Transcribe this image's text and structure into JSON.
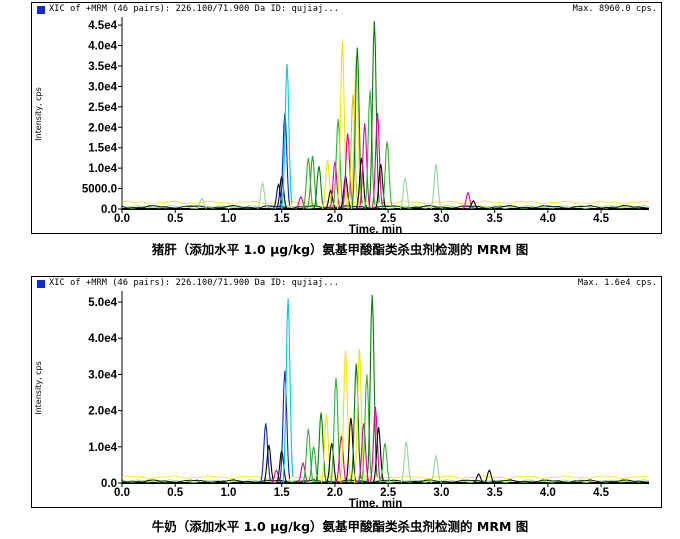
{
  "colors": {
    "header_square": "#0b2ad8",
    "series_palette": [
      "#00c8e8",
      "#0a2aa8",
      "#ffe000",
      "#2ab82a",
      "#0a7a0a",
      "#e000a0",
      "#000000",
      "#9ad49a",
      "#7878e8",
      "#c8c800",
      "#30a030",
      "#000080"
    ]
  },
  "chart_data": [
    {
      "type": "line",
      "header": "XIC of +MRM (46 pairs): 226.100/71.900 Da ID: qujiaj...",
      "max_label": "Max. 8960.0 cps.",
      "ylabel": "Intensity, cps",
      "xlabel": "Time, min",
      "xlim": [
        0.0,
        4.95
      ],
      "ylim": [
        0,
        46500
      ],
      "x_ticks": [
        "0.0",
        "0.5",
        "1.0",
        "1.5",
        "2.0",
        "2.5",
        "3.0",
        "3.5",
        "4.0",
        "4.5"
      ],
      "x_tick_values": [
        0.0,
        0.5,
        1.0,
        1.5,
        2.0,
        2.5,
        3.0,
        3.5,
        4.0,
        4.5
      ],
      "y_ticks": [
        "0.0",
        "5000.0",
        "1.0e4",
        "1.5e4",
        "2.0e4",
        "2.5e4",
        "3.0e4",
        "3.5e4",
        "4.0e4",
        "4.5e4"
      ],
      "y_tick_values": [
        0,
        5000,
        10000,
        15000,
        20000,
        25000,
        30000,
        35000,
        40000,
        45000
      ],
      "peaks": [
        {
          "rt": 0.75,
          "h": 2600,
          "c": 7
        },
        {
          "rt": 1.32,
          "h": 6400,
          "c": 7
        },
        {
          "rt": 1.47,
          "h": 6000,
          "c": 11
        },
        {
          "rt": 1.5,
          "h": 8000,
          "c": 6
        },
        {
          "rt": 1.53,
          "h": 23500,
          "c": 1
        },
        {
          "rt": 1.55,
          "h": 35500,
          "c": 0
        },
        {
          "rt": 1.68,
          "h": 3000,
          "c": 5
        },
        {
          "rt": 1.75,
          "h": 12500,
          "c": 3
        },
        {
          "rt": 1.79,
          "h": 13000,
          "c": 10
        },
        {
          "rt": 1.85,
          "h": 10500,
          "c": 4
        },
        {
          "rt": 1.93,
          "h": 12000,
          "c": 2
        },
        {
          "rt": 1.96,
          "h": 4500,
          "c": 6
        },
        {
          "rt": 2.0,
          "h": 11500,
          "c": 5
        },
        {
          "rt": 2.03,
          "h": 22000,
          "c": 3
        },
        {
          "rt": 2.07,
          "h": 41000,
          "c": 2
        },
        {
          "rt": 2.1,
          "h": 8000,
          "c": 6
        },
        {
          "rt": 2.12,
          "h": 18500,
          "c": 5
        },
        {
          "rt": 2.17,
          "h": 28000,
          "c": 9
        },
        {
          "rt": 2.2,
          "h": 37500,
          "c": 2
        },
        {
          "rt": 2.21,
          "h": 39500,
          "c": 4
        },
        {
          "rt": 2.25,
          "h": 12500,
          "c": 6
        },
        {
          "rt": 2.28,
          "h": 21000,
          "c": 5
        },
        {
          "rt": 2.33,
          "h": 29000,
          "c": 3
        },
        {
          "rt": 2.37,
          "h": 46000,
          "c": 4
        },
        {
          "rt": 2.4,
          "h": 23500,
          "c": 5
        },
        {
          "rt": 2.43,
          "h": 11000,
          "c": 6
        },
        {
          "rt": 2.49,
          "h": 16500,
          "c": 3
        },
        {
          "rt": 2.66,
          "h": 7500,
          "c": 7
        },
        {
          "rt": 2.95,
          "h": 11000,
          "c": 7
        },
        {
          "rt": 3.25,
          "h": 4000,
          "c": 5
        },
        {
          "rt": 3.3,
          "h": 2000,
          "c": 6
        }
      ]
    },
    {
      "type": "line",
      "header": "XIC of +MRM (46 pairs): 226.100/71.900 Da ID: qujiaj...",
      "max_label": "Max. 1.6e4 cps.",
      "ylabel": "Intensity, cps",
      "xlabel": "Time, min",
      "xlim": [
        0.0,
        4.95
      ],
      "ylim": [
        0,
        52500
      ],
      "x_ticks": [
        "0.0",
        "0.5",
        "1.0",
        "1.5",
        "2.0",
        "2.5",
        "3.0",
        "3.5",
        "4.0",
        "4.5"
      ],
      "x_tick_values": [
        0.0,
        0.5,
        1.0,
        1.5,
        2.0,
        2.5,
        3.0,
        3.5,
        4.0,
        4.5
      ],
      "y_ticks": [
        "0.0",
        "1.0e4",
        "2.0e4",
        "3.0e4",
        "4.0e4",
        "5.0e4"
      ],
      "y_tick_values": [
        0,
        10000,
        20000,
        30000,
        40000,
        50000
      ],
      "peaks": [
        {
          "rt": 1.35,
          "h": 16500,
          "c": 1
        },
        {
          "rt": 1.38,
          "h": 10500,
          "c": 6
        },
        {
          "rt": 1.45,
          "h": 3500,
          "c": 5
        },
        {
          "rt": 1.5,
          "h": 9000,
          "c": 6
        },
        {
          "rt": 1.53,
          "h": 31000,
          "c": 1
        },
        {
          "rt": 1.56,
          "h": 51000,
          "c": 0
        },
        {
          "rt": 1.7,
          "h": 5500,
          "c": 5
        },
        {
          "rt": 1.75,
          "h": 15000,
          "c": 3
        },
        {
          "rt": 1.8,
          "h": 10000,
          "c": 10
        },
        {
          "rt": 1.87,
          "h": 19500,
          "c": 4
        },
        {
          "rt": 1.92,
          "h": 19000,
          "c": 2
        },
        {
          "rt": 1.97,
          "h": 11000,
          "c": 6
        },
        {
          "rt": 2.01,
          "h": 29000,
          "c": 3
        },
        {
          "rt": 2.06,
          "h": 13000,
          "c": 5
        },
        {
          "rt": 2.1,
          "h": 36500,
          "c": 2
        },
        {
          "rt": 2.15,
          "h": 18000,
          "c": 6
        },
        {
          "rt": 2.2,
          "h": 33000,
          "c": 4
        },
        {
          "rt": 2.23,
          "h": 37000,
          "c": 2
        },
        {
          "rt": 2.27,
          "h": 16500,
          "c": 5
        },
        {
          "rt": 2.3,
          "h": 30000,
          "c": 3
        },
        {
          "rt": 2.35,
          "h": 52000,
          "c": 4
        },
        {
          "rt": 2.38,
          "h": 21000,
          "c": 5
        },
        {
          "rt": 2.41,
          "h": 15500,
          "c": 6
        },
        {
          "rt": 2.47,
          "h": 11000,
          "c": 3
        },
        {
          "rt": 2.67,
          "h": 11500,
          "c": 7
        },
        {
          "rt": 2.95,
          "h": 7500,
          "c": 7
        },
        {
          "rt": 3.35,
          "h": 2500,
          "c": 6
        },
        {
          "rt": 3.45,
          "h": 3500,
          "c": 6
        }
      ]
    }
  ],
  "captions": [
    "猪肝（添加水平 1.0 μg/kg）氨基甲酸酯类杀虫剂检测的 MRM 图",
    "牛奶（添加水平 1.0 μg/kg）氨基甲酸酯类杀虫剂检测的 MRM 图"
  ]
}
